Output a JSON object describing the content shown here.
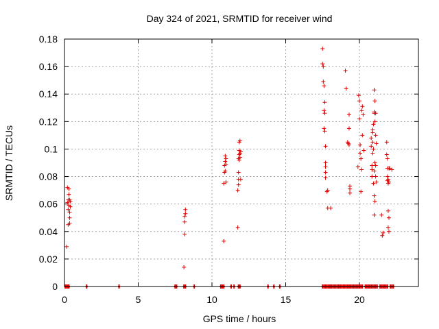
{
  "chart_data": {
    "type": "scatter",
    "title": "Day 324 of 2021, SRMTID for receiver wind",
    "xlabel": "GPS time / hours",
    "ylabel": "SRMTID / TECUs",
    "xlim": [
      0,
      24
    ],
    "ylim": [
      0,
      0.18
    ],
    "xticks": [
      0,
      5,
      10,
      15,
      20
    ],
    "xtick_labels": [
      "0",
      "5",
      "10",
      "15",
      "20"
    ],
    "yticks": [
      0,
      0.02,
      0.04,
      0.06,
      0.08,
      0.1,
      0.12,
      0.14,
      0.16,
      0.18
    ],
    "ytick_labels": [
      "0",
      "0.02",
      "0.04",
      "0.06",
      "0.08",
      "0.1",
      "0.12",
      "0.14",
      "0.16",
      "0.18"
    ],
    "grid": true,
    "marker": "+",
    "color": "#dd0000",
    "series": [
      {
        "name": "SRMTID",
        "x": [
          0.15,
          0.2,
          0.2,
          0.25,
          0.25,
          0.25,
          0.3,
          0.3,
          0.3,
          0.35,
          0.35,
          0.35,
          0.35,
          0.4,
          0.4,
          8.1,
          8.15,
          8.15,
          8.15,
          8.2,
          8.2,
          10.8,
          10.8,
          10.85,
          10.85,
          10.9,
          10.9,
          10.9,
          10.95,
          10.95,
          10.95,
          11.75,
          11.75,
          11.8,
          11.8,
          11.8,
          11.8,
          11.85,
          11.85,
          11.85,
          11.85,
          11.9,
          11.9,
          11.9,
          11.95,
          11.95,
          17.5,
          17.5,
          17.55,
          17.55,
          17.6,
          17.6,
          17.6,
          17.65,
          17.65,
          17.65,
          17.7,
          17.7,
          17.7,
          17.7,
          17.7,
          17.8,
          17.85,
          17.85,
          18.05,
          19.05,
          19.1,
          19.2,
          19.25,
          19.3,
          19.3,
          19.3,
          19.35,
          19.35,
          19.35,
          19.9,
          19.95,
          20.0,
          20.0,
          20.05,
          20.05,
          20.1,
          20.1,
          20.15,
          20.15,
          20.2,
          20.2,
          20.25,
          20.3,
          20.8,
          20.8,
          20.85,
          20.85,
          20.85,
          20.9,
          20.9,
          20.9,
          20.9,
          20.95,
          20.95,
          20.95,
          21.0,
          21.0,
          21.0,
          21.0,
          21.0,
          21.0,
          21.05,
          21.05,
          21.05,
          21.05,
          21.1,
          21.1,
          21.1,
          21.1,
          21.15,
          21.15,
          21.5,
          21.55,
          21.6,
          21.85,
          21.85,
          21.9,
          21.9,
          21.9,
          21.9,
          21.95,
          21.95,
          21.95,
          21.95,
          22.0,
          22.0,
          22.0,
          22.0,
          22.05,
          22.2
        ],
        "y": [
          0.029,
          0.061,
          0.072,
          0.063,
          0.056,
          0.045,
          0.071,
          0.067,
          0.059,
          0.063,
          0.054,
          0.05,
          0.046,
          0.062,
          0.058,
          0.014,
          0.038,
          0.047,
          0.051,
          0.053,
          0.056,
          0.033,
          0.075,
          0.083,
          0.088,
          0.095,
          0.091,
          0.084,
          0.076,
          0.089,
          0.093,
          0.043,
          0.07,
          0.083,
          0.078,
          0.074,
          0.093,
          0.099,
          0.096,
          0.092,
          0.105,
          0.097,
          0.094,
          0.106,
          0.078,
          0.098,
          0.173,
          0.162,
          0.16,
          0.149,
          0.146,
          0.128,
          0.115,
          0.134,
          0.126,
          0.113,
          0.102,
          0.09,
          0.087,
          0.083,
          0.079,
          0.069,
          0.07,
          0.057,
          0.057,
          0.157,
          0.144,
          0.105,
          0.104,
          0.125,
          0.115,
          0.103,
          0.073,
          0.071,
          0.068,
          0.087,
          0.139,
          0.135,
          0.122,
          0.103,
          0.097,
          0.093,
          0.069,
          0.085,
          0.128,
          0.11,
          0.131,
          0.125,
          0.099,
          0.102,
          0.108,
          0.088,
          0.085,
          0.08,
          0.112,
          0.097,
          0.105,
          0.114,
          0.118,
          0.1,
          0.075,
          0.143,
          0.127,
          0.126,
          0.084,
          0.066,
          0.052,
          0.135,
          0.12,
          0.09,
          0.062,
          0.126,
          0.11,
          0.088,
          0.08,
          0.104,
          0.076,
          0.052,
          0.037,
          0.039,
          0.105,
          0.096,
          0.093,
          0.086,
          0.08,
          0.077,
          0.078,
          0.075,
          0.055,
          0.043,
          0.086,
          0.076,
          0.05,
          0.04,
          0.086,
          0.085
        ]
      }
    ],
    "zero_markers_x": [
      0.05,
      0.1,
      0.2,
      0.25,
      0.3,
      1.5,
      3.7,
      7.5,
      7.6,
      8.1,
      8.2,
      8.8,
      10.6,
      10.7,
      10.8,
      11.3,
      11.5,
      11.8,
      11.9,
      13.8,
      14.2,
      14.6,
      17.5,
      17.6,
      17.7,
      17.8,
      17.9,
      18.0,
      18.1,
      18.2,
      18.3,
      18.4,
      18.5,
      18.6,
      18.7,
      18.8,
      18.9,
      19.0,
      19.1,
      19.2,
      19.3,
      19.4,
      19.5,
      19.6,
      19.7,
      19.8,
      19.9,
      20.0,
      20.1,
      20.2,
      20.4,
      20.5,
      20.6,
      20.7,
      20.8,
      20.9,
      21.0,
      21.1,
      21.2,
      21.4,
      21.5,
      21.6,
      21.7,
      21.8,
      21.9,
      22.1,
      22.2,
      22.3
    ]
  }
}
